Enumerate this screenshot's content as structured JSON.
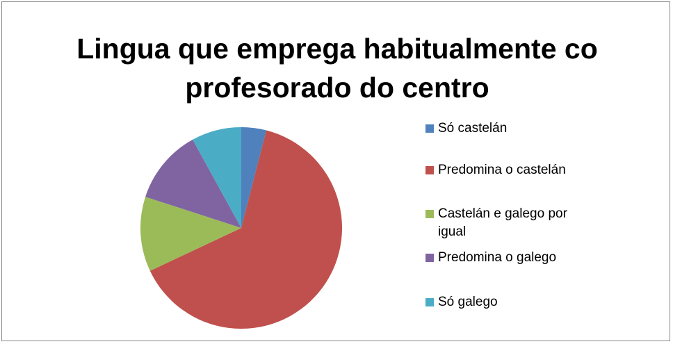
{
  "chart_data": {
    "type": "pie",
    "title": "Lingua que emprega habitualmente co profesorado do centro",
    "categories": [
      "Só castelán",
      "Predomina o castelán",
      "Castelán e galego por igual",
      "Predomina o galego",
      "Só galego"
    ],
    "values": [
      4,
      64,
      12,
      12,
      8
    ],
    "colors": [
      "#4f81bd",
      "#c0504d",
      "#9bbb59",
      "#8064a2",
      "#4bacc6"
    ],
    "legend": "right"
  }
}
